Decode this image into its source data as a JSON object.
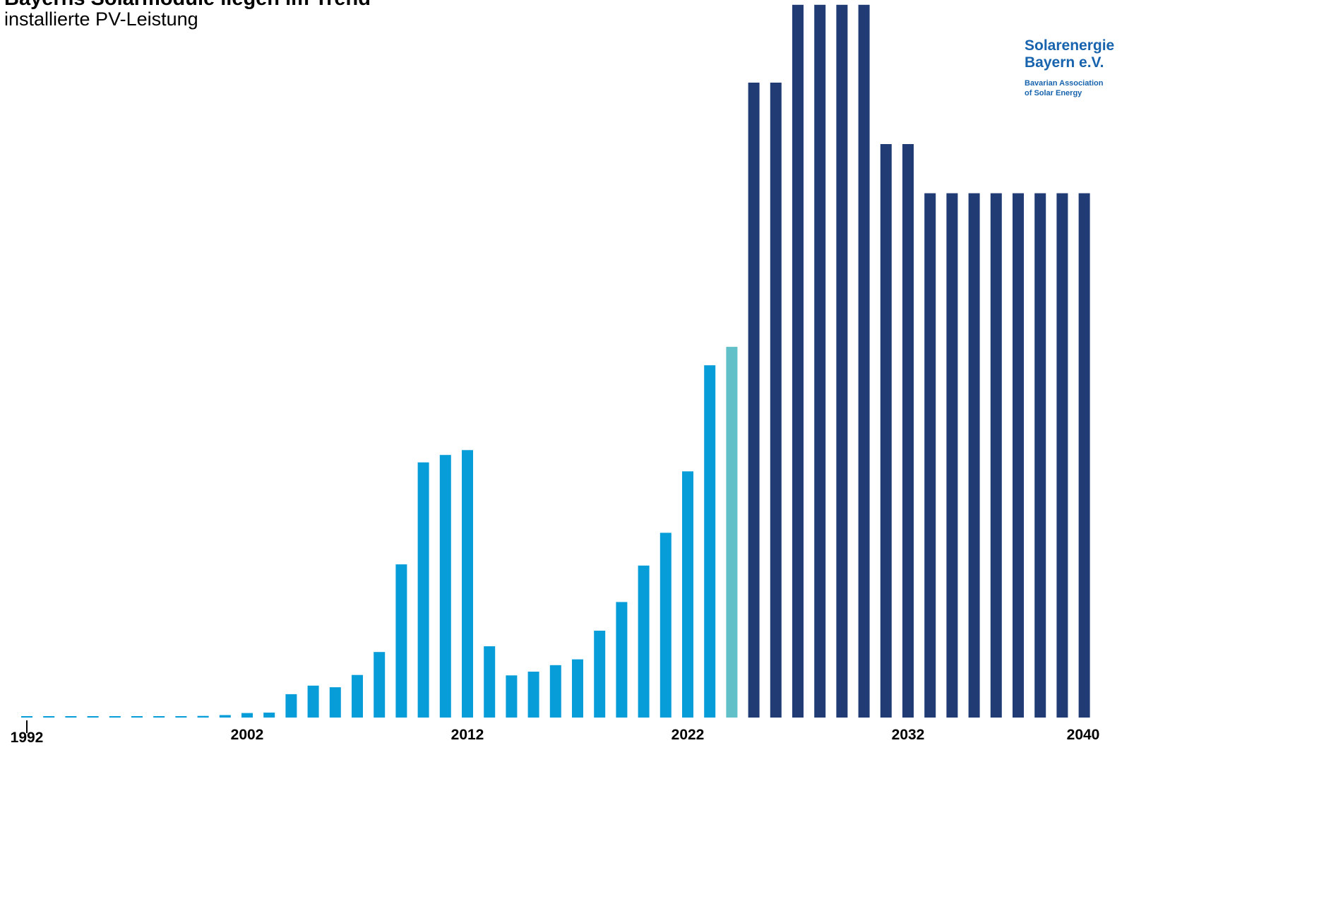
{
  "chart_data": {
    "type": "bar",
    "title": "Bayerns Solarmodule liegen im Trend",
    "subtitle": "installierte PV-Leistung",
    "x": [
      1992,
      1993,
      1994,
      1995,
      1996,
      1997,
      1998,
      1999,
      2000,
      2001,
      2002,
      2003,
      2004,
      2005,
      2006,
      2007,
      2008,
      2009,
      2010,
      2011,
      2012,
      2013,
      2014,
      2015,
      2016,
      2017,
      2018,
      2019,
      2020,
      2021,
      2022,
      2023,
      2024,
      2025,
      2026,
      2027,
      2028,
      2029,
      2030,
      2031,
      2032,
      2033,
      2034,
      2035,
      2036,
      2037,
      2038,
      2039,
      2040
    ],
    "values": [
      0.2,
      0.2,
      0.2,
      0.2,
      0.2,
      0.2,
      0.2,
      0.2,
      0.4,
      0.6,
      1.1,
      1.2,
      5.7,
      7.8,
      7.4,
      10.4,
      16.0,
      37.4,
      62.3,
      64.1,
      65.3,
      17.4,
      10.3,
      11.2,
      12.8,
      14.2,
      21.2,
      28.2,
      37.1,
      45.1,
      60.1,
      86.0,
      90.5,
      155.0,
      155.0,
      174.0,
      174.0,
      174.0,
      174.0,
      140.0,
      140.0,
      128.0,
      128.0,
      128.0,
      128.0,
      128.0,
      128.0,
      128.0,
      128.0
    ],
    "segments": [
      {
        "from": 1992,
        "to": 2023,
        "kind": "historisch",
        "color": "#069dd9"
      },
      {
        "from": 2024,
        "to": 2024,
        "kind": "aktuell",
        "color": "#62c0c9"
      },
      {
        "from": 2025,
        "to": 2040,
        "kind": "Ziel",
        "color": "#213b74"
      }
    ],
    "x_tick_labels": [
      "1992",
      "2002",
      "2012",
      "2022",
      "2032",
      "2040"
    ],
    "xlabel": "",
    "ylabel": "",
    "grid": false,
    "legend": "none"
  },
  "logo": {
    "line1": "Solarenergie",
    "line2": "Bayern e.V.",
    "line3": "Bavarian Association",
    "line4": "of Solar Energy",
    "color": "#1763ad"
  }
}
